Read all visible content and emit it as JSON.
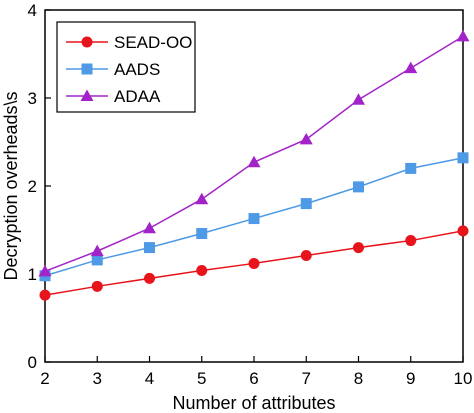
{
  "chart_data": {
    "type": "line",
    "title": "",
    "xlabel": "Number of attributes",
    "ylabel": "Decryption overheads\\s",
    "xlim": [
      2,
      10
    ],
    "ylim": [
      0,
      4
    ],
    "x_ticks": [
      "2",
      "3",
      "4",
      "5",
      "6",
      "7",
      "8",
      "9",
      "10"
    ],
    "y_ticks": [
      "0",
      "1",
      "2",
      "3",
      "4"
    ],
    "x": [
      2,
      3,
      4,
      5,
      6,
      7,
      8,
      9,
      10
    ],
    "grid": false,
    "legend_position": "top-left",
    "series": [
      {
        "name": "SEAD-OO",
        "color": "#e8141b",
        "marker": "circle",
        "values": [
          0.76,
          0.86,
          0.95,
          1.04,
          1.12,
          1.21,
          1.3,
          1.38,
          1.49
        ]
      },
      {
        "name": "AADS",
        "color": "#4e9ae6",
        "marker": "square",
        "values": [
          0.98,
          1.16,
          1.3,
          1.46,
          1.63,
          1.8,
          1.99,
          2.2,
          2.32
        ]
      },
      {
        "name": "ADAA",
        "color": "#a224c8",
        "marker": "triangle",
        "values": [
          1.03,
          1.26,
          1.52,
          1.85,
          2.27,
          2.53,
          2.98,
          3.34,
          3.7
        ]
      }
    ]
  }
}
